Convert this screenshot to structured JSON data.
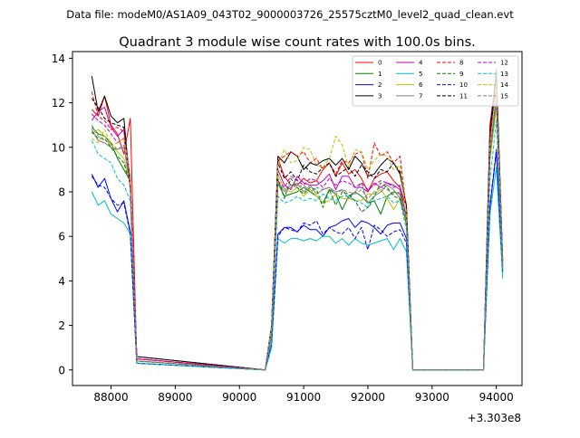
{
  "suptitle": "Data file: modeM0/AS1A09_043T02_9000003726_25575cztM0_level2_quad_clean.evt",
  "chart_data": {
    "type": "line",
    "title": "Quadrant 3 module wise count rates with 100.0s bins.",
    "xlabel": "",
    "ylabel": "",
    "x_offset_label": "+3.303e8",
    "xlim": [
      87400,
      94400
    ],
    "ylim": [
      -0.7,
      14.3
    ],
    "xticks": [
      88000,
      89000,
      90000,
      91000,
      92000,
      93000,
      94000
    ],
    "xtick_labels": [
      "88000",
      "89000",
      "90000",
      "91000",
      "92000",
      "93000",
      "94000"
    ],
    "yticks": [
      0,
      2,
      4,
      6,
      8,
      10,
      12,
      14
    ],
    "ytick_labels": [
      "0",
      "2",
      "4",
      "6",
      "8",
      "10",
      "12",
      "14"
    ],
    "grid": false,
    "legend_location": "top-right",
    "legend_columns": 4,
    "segments": [
      {
        "start": 87700,
        "count": 8
      },
      {
        "start": 90400,
        "count": 24
      },
      {
        "start": 93800,
        "count": 4
      }
    ],
    "series": [
      {
        "name": "0",
        "color": "#ff0000",
        "dash": "solid",
        "values": [
          11.7,
          11.4,
          12.3,
          11.0,
          10.6,
          9.7,
          11.3,
          0.5,
          0,
          2.0,
          9.5,
          8.7,
          8.3,
          8.3,
          8.6,
          8.4,
          8.5,
          9.0,
          9.3,
          8.7,
          9.3,
          8.8,
          9.0,
          8.6,
          8.0,
          8.6,
          8.8,
          8.9,
          8.5,
          8.2,
          7.3,
          0,
          0,
          11.0,
          13.2,
          5.0
        ]
      },
      {
        "name": "1",
        "color": "#008000",
        "dash": "solid",
        "values": [
          10.9,
          10.6,
          10.5,
          10.2,
          9.5,
          9.0,
          8.5,
          0.4,
          0,
          1.6,
          8.4,
          7.8,
          7.9,
          8.0,
          8.2,
          8.0,
          7.8,
          7.5,
          8.1,
          7.9,
          7.2,
          7.8,
          8.0,
          7.8,
          7.5,
          7.6,
          7.0,
          7.8,
          8.0,
          7.9,
          6.5,
          0,
          0,
          9.8,
          12.2,
          4.6
        ]
      },
      {
        "name": "2",
        "color": "#0000ff",
        "dash": "solid",
        "values": [
          8.8,
          8.2,
          8.6,
          7.7,
          7.1,
          7.6,
          6.2,
          0.3,
          0,
          1.2,
          6.1,
          6.4,
          6.4,
          6.2,
          6.5,
          6.3,
          6.3,
          6.0,
          6.4,
          6.5,
          6.7,
          6.8,
          6.4,
          6.7,
          6.6,
          6.4,
          6.1,
          6.5,
          6.6,
          6.6,
          5.9,
          0,
          0,
          7.3,
          9.8,
          4.5
        ]
      },
      {
        "name": "3",
        "color": "#000000",
        "dash": "solid",
        "values": [
          13.2,
          11.6,
          12.3,
          11.4,
          11.1,
          11.3,
          8.1,
          0.6,
          0,
          2.0,
          9.6,
          9.3,
          9.8,
          9.6,
          9.0,
          9.3,
          9.2,
          9.4,
          9.5,
          9.2,
          9.5,
          9.0,
          9.6,
          9.3,
          8.7,
          8.8,
          9.2,
          9.5,
          9.3,
          8.8,
          7.4,
          0,
          0,
          10.7,
          13.4,
          4.9
        ]
      },
      {
        "name": "4",
        "color": "#bf00bf",
        "dash": "solid",
        "values": [
          11.2,
          11.6,
          11.8,
          10.9,
          10.5,
          10.8,
          8.6,
          0.5,
          0,
          1.9,
          9.0,
          8.3,
          8.1,
          8.7,
          8.4,
          8.3,
          8.3,
          8.5,
          8.8,
          8.1,
          8.7,
          8.7,
          8.2,
          8.2,
          8.0,
          8.4,
          8.2,
          8.4,
          8.3,
          8.1,
          6.9,
          0,
          0,
          10.5,
          12.9,
          4.8
        ]
      },
      {
        "name": "5",
        "color": "#00bfbf",
        "dash": "solid",
        "values": [
          8.0,
          7.4,
          7.6,
          7.0,
          6.8,
          6.6,
          6.1,
          0.3,
          0,
          1.0,
          5.9,
          5.7,
          5.9,
          5.9,
          5.8,
          5.9,
          5.8,
          6.0,
          6.0,
          5.7,
          5.9,
          5.6,
          5.9,
          5.7,
          5.6,
          5.7,
          5.8,
          5.9,
          5.4,
          5.9,
          5.3,
          0,
          0,
          7.0,
          9.1,
          4.1
        ]
      },
      {
        "name": "6",
        "color": "#bfbf00",
        "dash": "solid",
        "values": [
          10.6,
          10.8,
          10.5,
          10.1,
          9.8,
          9.5,
          8.4,
          0.4,
          0,
          1.8,
          8.8,
          8.1,
          8.0,
          8.2,
          7.8,
          8.1,
          7.8,
          7.5,
          7.6,
          7.9,
          7.7,
          7.7,
          7.6,
          7.6,
          7.9,
          7.9,
          8.1,
          7.7,
          7.2,
          7.7,
          6.5,
          0,
          0,
          9.4,
          11.8,
          4.5
        ]
      },
      {
        "name": "7",
        "color": "#808080",
        "dash": "solid",
        "values": [
          10.8,
          10.3,
          10.2,
          10.0,
          9.9,
          10.0,
          8.3,
          0.4,
          0,
          1.7,
          8.4,
          8.0,
          8.2,
          8.4,
          8.0,
          8.3,
          7.9,
          8.1,
          8.2,
          8.0,
          8.1,
          7.7,
          8.0,
          8.4,
          7.5,
          7.8,
          8.0,
          8.3,
          8.1,
          7.7,
          6.7,
          0,
          0,
          9.6,
          12.0,
          4.6
        ]
      },
      {
        "name": "8",
        "color": "#ff0000",
        "dash": "dashed",
        "values": [
          12.5,
          11.4,
          11.2,
          10.8,
          10.9,
          10.7,
          8.5,
          0.5,
          0,
          2.0,
          9.4,
          9.6,
          9.8,
          9.6,
          9.8,
          9.3,
          9.5,
          9.0,
          9.3,
          8.8,
          9.4,
          9.3,
          9.7,
          9.8,
          8.6,
          10.2,
          9.6,
          9.8,
          9.3,
          9.6,
          7.2,
          0,
          0,
          10.5,
          13.0,
          4.9
        ]
      },
      {
        "name": "9",
        "color": "#008000",
        "dash": "dashed",
        "values": [
          10.7,
          10.4,
          10.4,
          10.0,
          9.6,
          9.3,
          8.3,
          0.4,
          0,
          1.8,
          8.6,
          7.7,
          8.6,
          8.2,
          7.9,
          8.2,
          8.1,
          7.3,
          8.1,
          7.4,
          8.0,
          7.9,
          7.6,
          7.1,
          7.3,
          7.8,
          8.4,
          8.2,
          7.8,
          7.7,
          6.6,
          0,
          0,
          9.6,
          12.3,
          4.5
        ]
      },
      {
        "name": "10",
        "color": "#0000ff",
        "dash": "dashed",
        "values": [
          8.7,
          8.3,
          8.2,
          7.7,
          7.4,
          7.5,
          6.1,
          0.3,
          0,
          1.2,
          6.0,
          6.4,
          6.3,
          6.2,
          6.6,
          6.5,
          6.7,
          6.1,
          6.4,
          6.2,
          6.1,
          6.4,
          5.9,
          6.4,
          5.4,
          6.5,
          6.3,
          6.0,
          6.2,
          6.3,
          5.7,
          0,
          0,
          7.4,
          9.9,
          4.4
        ]
      },
      {
        "name": "11",
        "color": "#000000",
        "dash": "dashed",
        "values": [
          12.2,
          11.8,
          11.3,
          11.1,
          11.0,
          10.9,
          8.2,
          0.6,
          0,
          1.9,
          9.3,
          8.6,
          8.9,
          8.5,
          9.2,
          8.9,
          8.8,
          9.1,
          9.3,
          8.7,
          8.9,
          9.1,
          8.7,
          9.2,
          8.9,
          8.6,
          9.0,
          8.9,
          9.3,
          8.9,
          7.2,
          0,
          0,
          10.2,
          13.5,
          4.8
        ]
      },
      {
        "name": "12",
        "color": "#bf00bf",
        "dash": "dashed",
        "values": [
          11.5,
          11.2,
          11.0,
          10.6,
          10.2,
          10.4,
          8.4,
          0.5,
          0,
          1.8,
          8.5,
          8.2,
          8.7,
          8.5,
          8.3,
          8.6,
          8.5,
          8.2,
          8.6,
          8.3,
          8.5,
          8.4,
          8.2,
          8.4,
          8.1,
          8.3,
          8.5,
          8.4,
          8.2,
          8.3,
          6.8,
          0,
          0,
          10.3,
          12.6,
          4.7
        ]
      },
      {
        "name": "13",
        "color": "#00bfbf",
        "dash": "dashed",
        "values": [
          10.3,
          9.7,
          9.5,
          9.3,
          8.6,
          8.3,
          7.6,
          0.3,
          0,
          1.3,
          7.8,
          7.5,
          7.6,
          7.8,
          7.6,
          7.7,
          7.6,
          7.9,
          7.7,
          7.6,
          7.8,
          7.8,
          7.6,
          7.5,
          7.3,
          7.6,
          7.7,
          7.8,
          7.5,
          7.6,
          6.3,
          0,
          0,
          8.5,
          11.2,
          4.3
        ]
      },
      {
        "name": "14",
        "color": "#bfbf00",
        "dash": "dashed",
        "values": [
          10.4,
          10.2,
          10.8,
          10.1,
          10.2,
          10.4,
          8.7,
          0.4,
          0,
          2.0,
          9.2,
          9.9,
          9.3,
          9.4,
          10.0,
          9.9,
          9.2,
          9.1,
          9.5,
          10.5,
          10.1,
          9.1,
          9.9,
          9.8,
          9.0,
          9.4,
          9.7,
          9.6,
          9.0,
          9.2,
          7.1,
          0,
          0,
          10.0,
          12.8,
          4.9
        ]
      },
      {
        "name": "15",
        "color": "#808080",
        "dash": "dashed",
        "values": [
          11.0,
          10.5,
          10.3,
          10.2,
          9.9,
          10.1,
          8.2,
          0.4,
          0,
          1.7,
          8.4,
          8.1,
          8.3,
          8.2,
          8.3,
          8.0,
          8.2,
          8.1,
          8.2,
          7.9,
          8.1,
          8.0,
          7.9,
          8.1,
          7.7,
          8.0,
          8.2,
          8.1,
          7.9,
          8.0,
          6.7,
          0,
          0,
          9.7,
          12.2,
          4.5
        ]
      }
    ]
  }
}
